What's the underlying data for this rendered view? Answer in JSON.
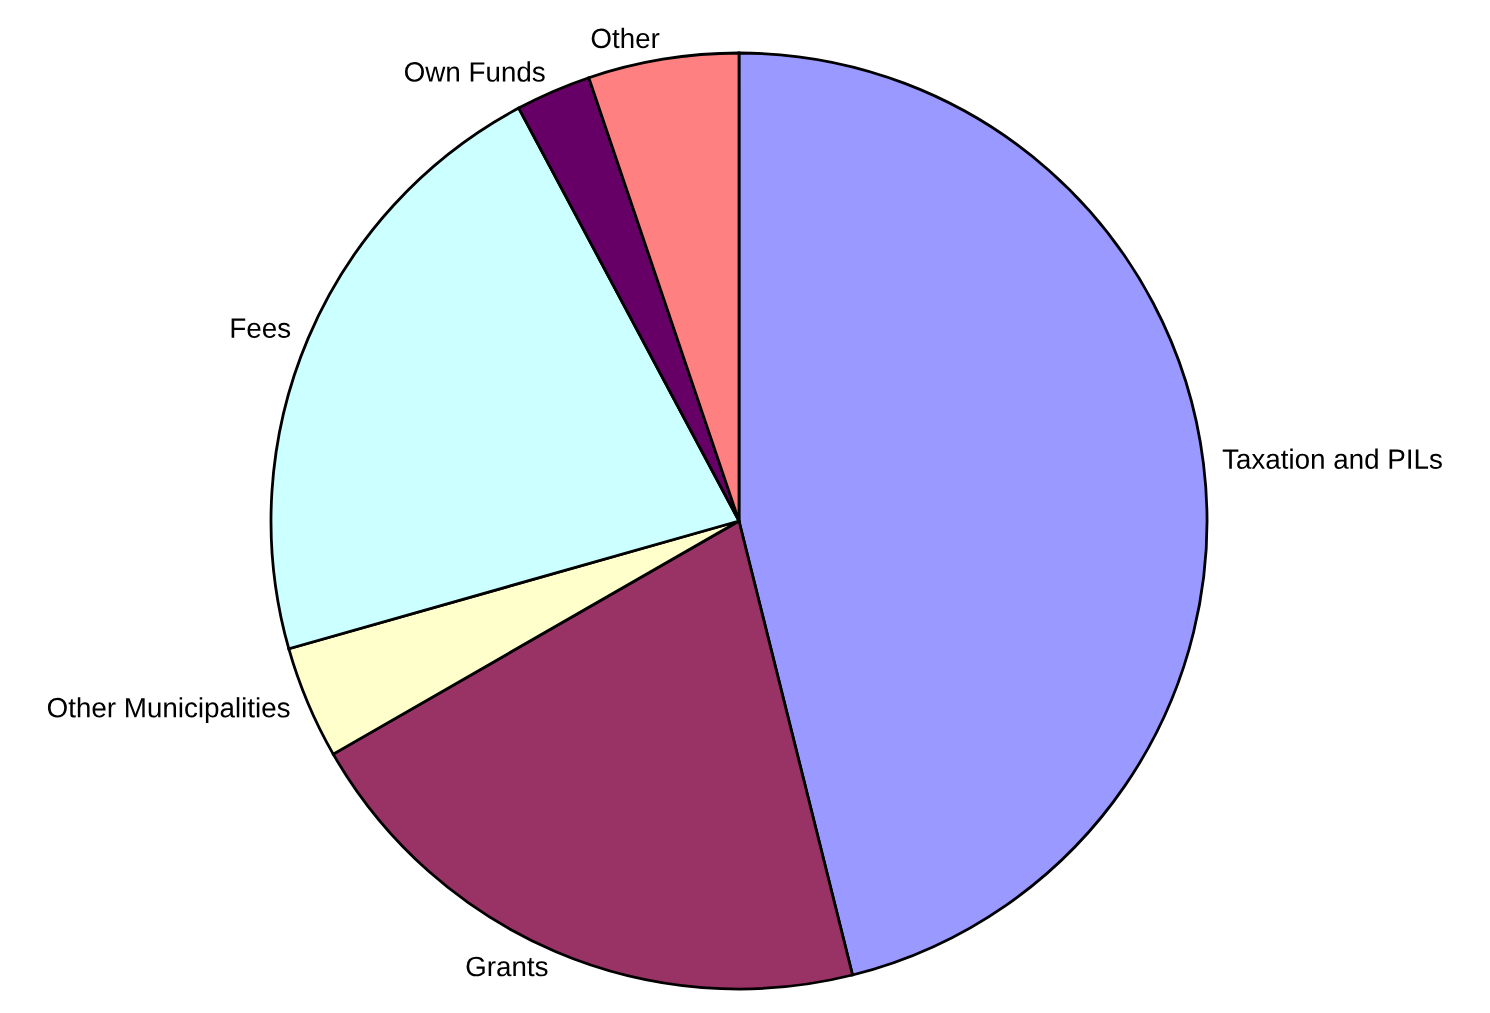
{
  "chart_data": {
    "type": "pie",
    "categories": [
      "Taxation and PILs",
      "Grants",
      "Other Municipalities",
      "Fees",
      "Own Funds",
      "Other"
    ],
    "values": [
      46.1,
      20.6,
      3.9,
      21.6,
      2.6,
      5.2
    ],
    "colors": [
      "#9999ff",
      "#993366",
      "#ffffcc",
      "#ccffff",
      "#660066",
      "#ff8080"
    ],
    "legend": false
  }
}
